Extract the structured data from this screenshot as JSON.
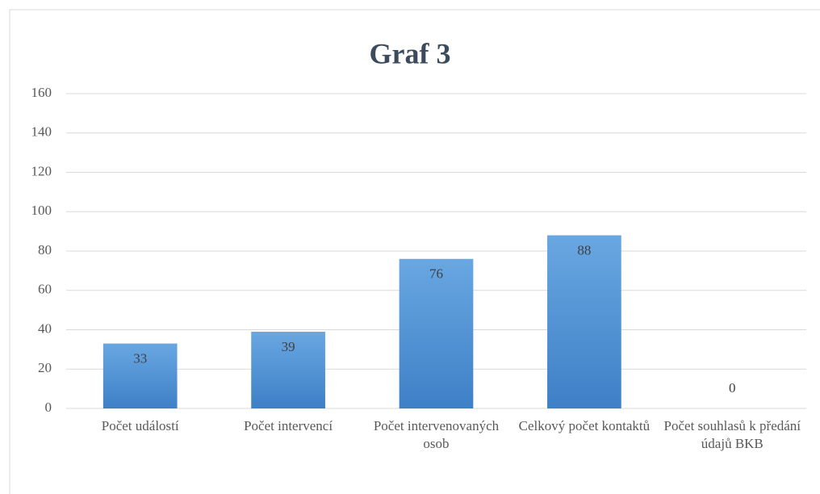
{
  "chart_data": {
    "type": "bar",
    "title": "Graf 3",
    "categories": [
      "Počet událostí",
      "Počet intervencí",
      "Počet intervenovaných osob",
      "Celkový počet kontaktů",
      "Počet souhlasů k předání údajů BKB"
    ],
    "values": [
      33,
      39,
      76,
      88,
      0
    ],
    "color": "#5b9bd5",
    "ylim": [
      0,
      160
    ],
    "yticks": [
      0,
      20,
      40,
      60,
      80,
      100,
      120,
      140,
      160
    ],
    "grid": true
  }
}
